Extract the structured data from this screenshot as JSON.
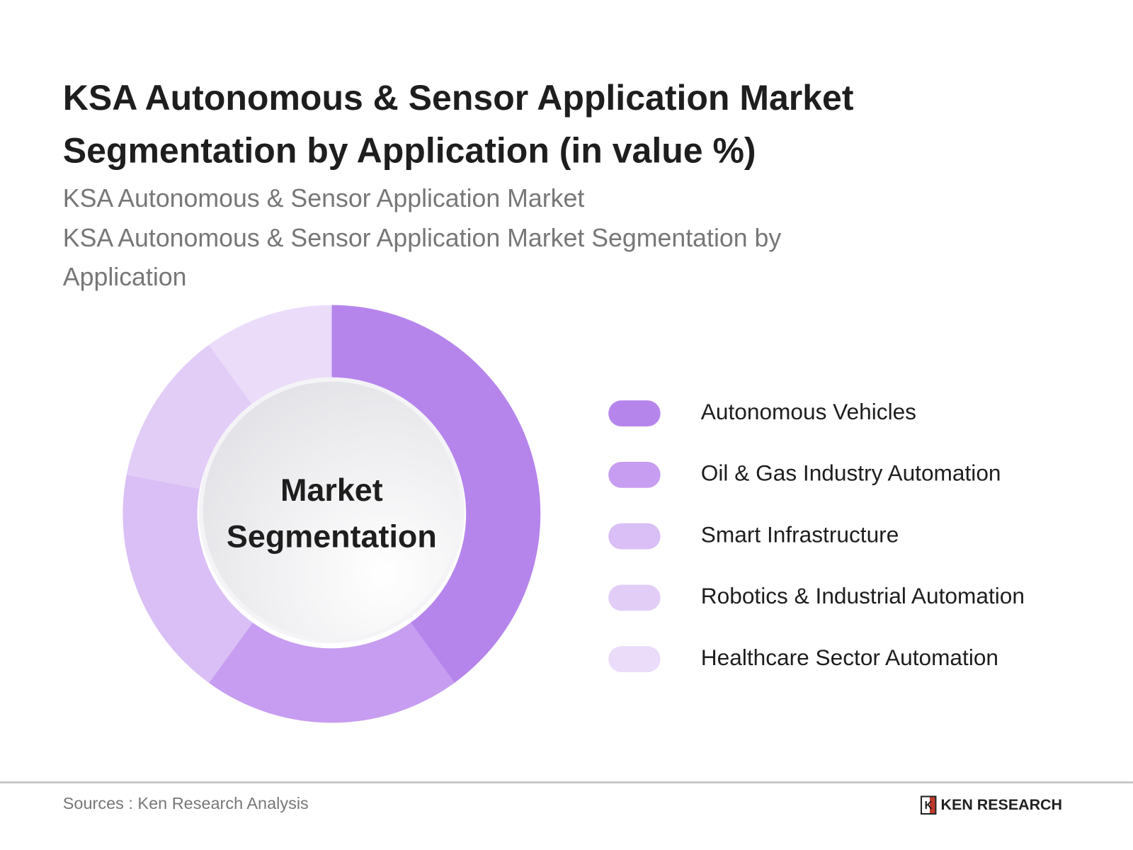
{
  "title": "KSA Autonomous & Sensor Application Market Segmentation by Application (in value %)",
  "subtitle_1": "KSA Autonomous & Sensor Application Market",
  "subtitle_2": "KSA Autonomous & Sensor Application Market Segmentation by Application",
  "center_label": [
    "Market",
    "Segmentation"
  ],
  "source": "Sources : Ken Research Analysis",
  "logo_text": "KEN RESEARCH",
  "chart_data": {
    "type": "pie",
    "variant": "donut",
    "categories": [
      "Autonomous Vehicles",
      "Oil & Gas Industry Automation",
      "Smart Infrastructure",
      "Robotics & Industrial Automation",
      "Healthcare Sector Automation"
    ],
    "values": [
      40,
      20,
      18,
      12,
      10
    ],
    "colors": [
      "#b585ec",
      "#c69df0",
      "#d9bff5",
      "#e2cdf7",
      "#ebdcfa"
    ],
    "legend_position": "right"
  }
}
